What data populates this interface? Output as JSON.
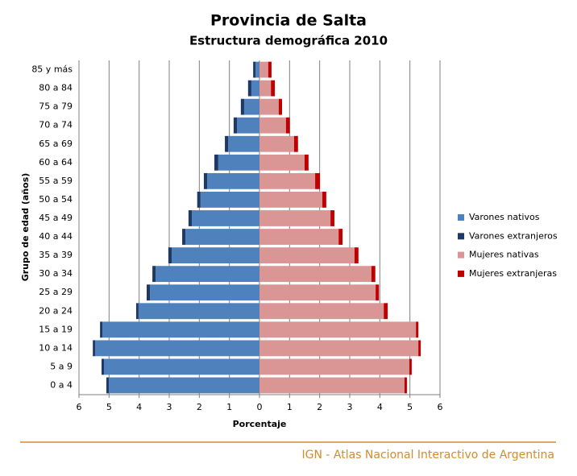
{
  "chart_data": {
    "type": "bar",
    "orientation": "horizontal",
    "stacked": true,
    "title": "Provincia de Salta",
    "subtitle": "Estructura demográfica 2010",
    "xlabel": "Porcentaje",
    "ylabel": "Grupo de edad (años)",
    "categories": [
      "0 a 4",
      "5 a 9",
      "10 a 14",
      "15 a 19",
      "20 a 24",
      "25 a 29",
      "30 a 34",
      "35 a 39",
      "40 a 44",
      "45 a 49",
      "50 a 54",
      "55 a 59",
      "60 a 64",
      "65 a 69",
      "70 a 74",
      "75 a 79",
      "80 a 84",
      "85 y más"
    ],
    "series": [
      {
        "name": "Varones nativos",
        "color": "#4f81bd",
        "values": [
          -5.01,
          -5.17,
          -5.46,
          -5.22,
          -4.02,
          -3.64,
          -3.45,
          -2.92,
          -2.46,
          -2.25,
          -1.96,
          -1.74,
          -1.37,
          -1.04,
          -0.75,
          -0.51,
          -0.27,
          -0.13
        ]
      },
      {
        "name": "Varones extranjeros",
        "color": "#1f3864",
        "values": [
          -0.08,
          -0.08,
          -0.08,
          -0.08,
          -0.08,
          -0.11,
          -0.11,
          -0.11,
          -0.11,
          -0.11,
          -0.11,
          -0.11,
          -0.13,
          -0.11,
          -0.11,
          -0.11,
          -0.11,
          -0.08
        ]
      },
      {
        "name": "Mujeres nativas",
        "color": "#d99694",
        "values": [
          4.82,
          4.98,
          5.28,
          5.2,
          4.13,
          3.86,
          3.72,
          3.16,
          2.63,
          2.36,
          2.09,
          1.85,
          1.5,
          1.15,
          0.88,
          0.64,
          0.38,
          0.29
        ]
      },
      {
        "name": "Mujeres extranjeras",
        "color": "#c00000",
        "values": [
          0.08,
          0.08,
          0.08,
          0.08,
          0.13,
          0.11,
          0.13,
          0.13,
          0.13,
          0.13,
          0.13,
          0.16,
          0.13,
          0.13,
          0.13,
          0.11,
          0.13,
          0.11
        ]
      }
    ],
    "xlim": [
      -6,
      6
    ],
    "xticks": [
      {
        "value": -6,
        "label": "6"
      },
      {
        "value": -5,
        "label": "5"
      },
      {
        "value": -4,
        "label": "4"
      },
      {
        "value": -3,
        "label": "3"
      },
      {
        "value": -2,
        "label": "2"
      },
      {
        "value": -1,
        "label": "1"
      },
      0,
      1,
      2,
      3,
      4,
      5,
      6
    ],
    "grid": true,
    "legend": "right"
  },
  "footer": {
    "text": "IGN - Atlas Nacional Interactivo de Argentina"
  }
}
